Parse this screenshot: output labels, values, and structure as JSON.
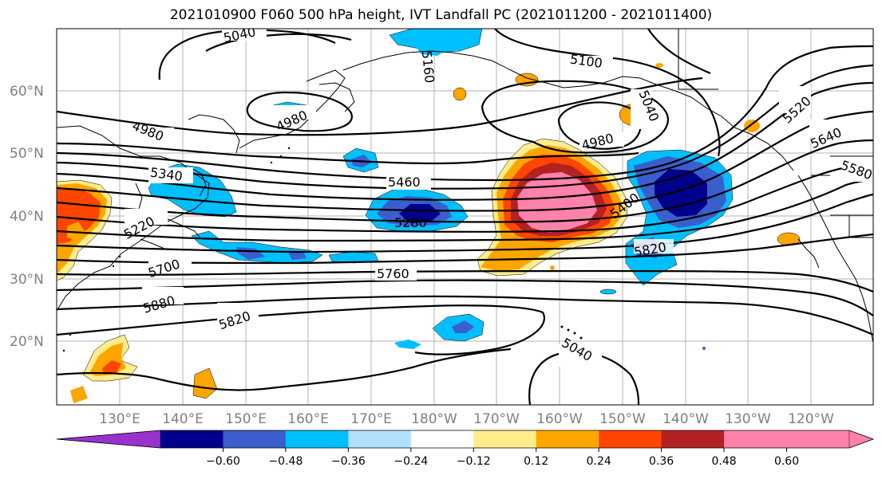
{
  "title": "2021010900 F060 500 hPa height, IVT Landfall PC (2021011200 - 2021011400)",
  "map": {
    "lat_labels": [
      "60°N",
      "50°N",
      "40°N",
      "30°N",
      "20°N"
    ],
    "lon_labels": [
      "130°E",
      "140°E",
      "150°E",
      "160°E",
      "170°E",
      "180°W",
      "170°W",
      "160°W",
      "150°W",
      "140°W",
      "130°W",
      "120°W"
    ],
    "contour_labels": [
      "5040",
      "5100",
      "5040",
      "4980",
      "4980",
      "4980",
      "5160",
      "5340",
      "5220",
      "5460",
      "5280",
      "5400",
      "5520",
      "5640",
      "5580",
      "5700",
      "5820",
      "5760",
      "5880",
      "5820",
      "5040"
    ]
  },
  "colorbar": {
    "ticks": [
      "−0.60",
      "−0.48",
      "−0.36",
      "−0.24",
      "−0.12",
      "0.12",
      "0.24",
      "0.36",
      "0.48",
      "0.60"
    ],
    "colors": [
      "#9932cc",
      "#00008b",
      "#3a5fcd",
      "#00bfff",
      "#b0e2ff",
      "#ffffff",
      "#ffec8b",
      "#ffa500",
      "#ff4500",
      "#b22222",
      "#ff82ab",
      "#ff82ab"
    ]
  }
}
